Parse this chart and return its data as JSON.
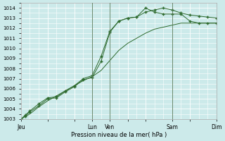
{
  "title": "",
  "xlabel": "Pression niveau de la mer( hPa )",
  "ylabel": "",
  "bg_color": "#cceaea",
  "grid_color": "#ffffff",
  "line_color": "#2d6a2d",
  "ylim": [
    1003,
    1014.5
  ],
  "yticks": [
    1003,
    1004,
    1005,
    1006,
    1007,
    1008,
    1009,
    1010,
    1011,
    1012,
    1013,
    1014
  ],
  "day_labels": [
    "Jeu",
    "",
    "",
    "Lun",
    "Ven",
    "",
    "",
    "Sam",
    "",
    "Dim"
  ],
  "day_positions": [
    0,
    3,
    6,
    8,
    10,
    12,
    14,
    17,
    19,
    22
  ],
  "xlim": [
    0,
    22
  ],
  "vlines": [
    8,
    10,
    17,
    22
  ],
  "series1_x": [
    0,
    0.5,
    1,
    2,
    3,
    4,
    5,
    6,
    7,
    8,
    9,
    10,
    11,
    12,
    13,
    14,
    15,
    16,
    17,
    18,
    19,
    20,
    21,
    22
  ],
  "series1_y": [
    1003.0,
    1003.4,
    1003.8,
    1004.5,
    1005.1,
    1005.2,
    1005.8,
    1006.3,
    1007.0,
    1007.3,
    1009.2,
    1011.7,
    1012.7,
    1013.0,
    1013.1,
    1013.6,
    1013.8,
    1014.0,
    1013.8,
    1013.5,
    1013.3,
    1013.2,
    1013.1,
    1013.0
  ],
  "series2_x": [
    0,
    0.5,
    1,
    2,
    3,
    4,
    5,
    6,
    7,
    8,
    9,
    10,
    11,
    12,
    13,
    14,
    15,
    16,
    17,
    18,
    19,
    20,
    21,
    22
  ],
  "series2_y": [
    1003.0,
    1003.3,
    1003.7,
    1004.3,
    1005.0,
    1005.1,
    1005.7,
    1006.2,
    1006.9,
    1007.1,
    1008.7,
    1011.6,
    1012.7,
    1013.0,
    1013.1,
    1014.0,
    1013.6,
    1013.4,
    1013.4,
    1013.4,
    1012.7,
    1012.5,
    1012.5,
    1012.5
  ],
  "series3_x": [
    0,
    1,
    2,
    3,
    4,
    5,
    6,
    7,
    8,
    9,
    10,
    11,
    12,
    13,
    14,
    15,
    16,
    17,
    18,
    19,
    20,
    21,
    22
  ],
  "series3_y": [
    1003.0,
    1003.5,
    1004.2,
    1004.8,
    1005.3,
    1005.8,
    1006.3,
    1006.8,
    1007.2,
    1007.8,
    1008.8,
    1009.8,
    1010.5,
    1011.0,
    1011.5,
    1011.9,
    1012.1,
    1012.3,
    1012.5,
    1012.5,
    1012.5,
    1012.5,
    1012.5
  ]
}
